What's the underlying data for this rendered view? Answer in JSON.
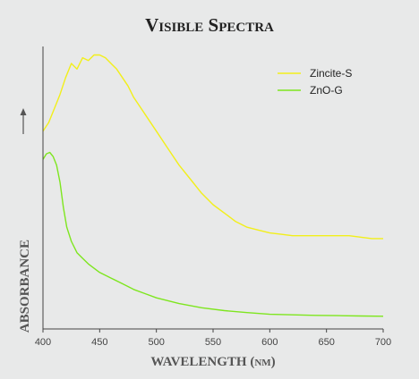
{
  "chart_data": {
    "type": "line",
    "title": "Visible Spectra",
    "xlabel": "WAVELENGTH (nm)",
    "ylabel": "ABSORBANCE",
    "xlim": [
      400,
      700
    ],
    "xticks": [
      "400",
      "450",
      "500",
      "550",
      "600",
      "650",
      "700"
    ],
    "ylim": [
      0,
      1
    ],
    "y_ticks_shown": false,
    "grid": false,
    "legend_position": "top-right",
    "series": [
      {
        "name": "Zincite-S",
        "color": "#f2ef1a",
        "x": [
          400,
          405,
          410,
          415,
          420,
          425,
          430,
          435,
          440,
          445,
          450,
          455,
          460,
          465,
          470,
          475,
          480,
          490,
          500,
          510,
          520,
          530,
          540,
          550,
          560,
          570,
          580,
          590,
          600,
          610,
          620,
          630,
          640,
          650,
          660,
          670,
          680,
          690,
          700
        ],
        "y": [
          0.7,
          0.73,
          0.78,
          0.83,
          0.89,
          0.94,
          0.92,
          0.96,
          0.95,
          0.97,
          0.97,
          0.96,
          0.94,
          0.92,
          0.89,
          0.86,
          0.82,
          0.76,
          0.7,
          0.64,
          0.58,
          0.53,
          0.48,
          0.44,
          0.41,
          0.38,
          0.36,
          0.35,
          0.34,
          0.335,
          0.33,
          0.33,
          0.33,
          0.33,
          0.33,
          0.33,
          0.325,
          0.32,
          0.32
        ]
      },
      {
        "name": "ZnO-G",
        "color": "#7ee61f",
        "x": [
          400,
          403,
          406,
          409,
          412,
          415,
          418,
          421,
          425,
          430,
          435,
          440,
          450,
          460,
          470,
          480,
          490,
          500,
          520,
          540,
          560,
          580,
          600,
          620,
          640,
          660,
          680,
          700
        ],
        "y": [
          0.6,
          0.62,
          0.625,
          0.61,
          0.58,
          0.52,
          0.43,
          0.36,
          0.31,
          0.27,
          0.25,
          0.23,
          0.2,
          0.18,
          0.16,
          0.14,
          0.125,
          0.11,
          0.09,
          0.075,
          0.065,
          0.058,
          0.052,
          0.05,
          0.048,
          0.047,
          0.046,
          0.045
        ]
      }
    ]
  }
}
